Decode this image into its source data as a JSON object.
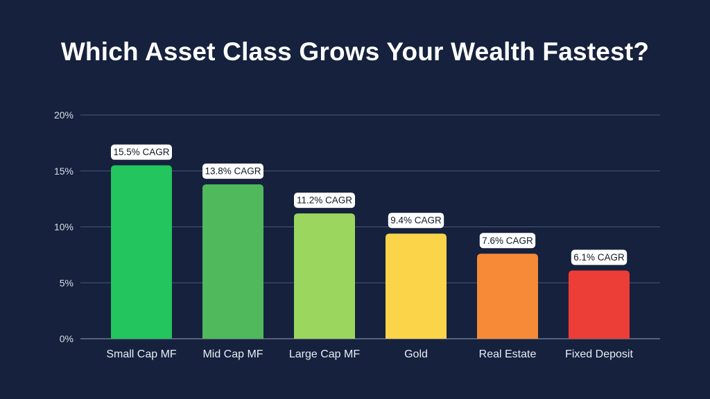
{
  "chart_data": {
    "type": "bar",
    "title": "Which Asset Class Grows Your Wealth Fastest?",
    "xlabel": "",
    "ylabel": "",
    "ylim": [
      0,
      20
    ],
    "y_ticks": [
      0,
      5,
      10,
      15,
      20
    ],
    "y_tick_labels": [
      "0%",
      "5%",
      "10%",
      "15%",
      "20%"
    ],
    "grid": true,
    "categories": [
      "Small Cap MF",
      "Mid Cap MF",
      "Large Cap MF",
      "Gold",
      "Real Estate",
      "Fixed Deposit"
    ],
    "values": [
      15.5,
      13.8,
      11.2,
      9.4,
      7.6,
      6.1
    ],
    "data_labels": [
      "15.5% CAGR",
      "13.8% CAGR",
      "11.2% CAGR",
      "9.4% CAGR",
      "7.6% CAGR",
      "6.1% CAGR"
    ],
    "colors": [
      "#22c55e",
      "#4fb95c",
      "#9bd65f",
      "#fbd44a",
      "#f68a37",
      "#ec3d37"
    ]
  }
}
